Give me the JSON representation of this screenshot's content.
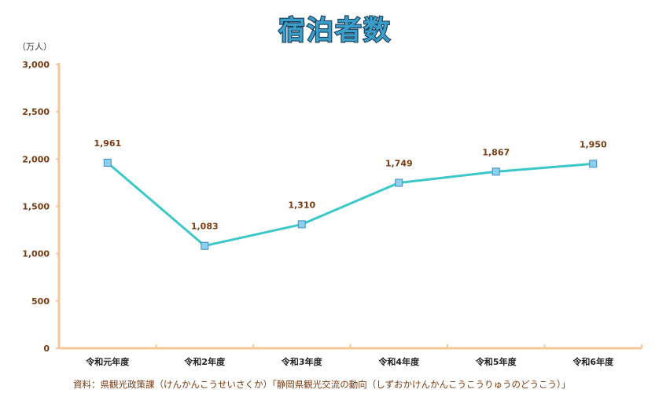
{
  "chart_data": {
    "type": "line",
    "title": "宿泊者数",
    "unit": "（万人）",
    "categories": [
      "令和元年度",
      "令和2年度",
      "令和3年度",
      "令和4年度",
      "令和5年度",
      "令和6年度"
    ],
    "series": [
      {
        "name": "宿泊者数",
        "values": [
          1961,
          1083,
          1310,
          1749,
          1867,
          1950
        ],
        "labels": [
          "1,961",
          "1,083",
          "1,310",
          "1,749",
          "1,867",
          "1,950"
        ]
      }
    ],
    "ylim": [
      0,
      3000
    ],
    "yticks": [
      0,
      500,
      1000,
      1500,
      2000,
      2500,
      3000
    ],
    "ytick_labels": [
      "0",
      "500",
      "1,000",
      "1,500",
      "2,000",
      "2,500",
      "3,000"
    ],
    "grid": false,
    "source": "資料：県観光政策課（けんかんこうせいさくか）「静岡県観光交流の動向（しずおかけんかんこうこうりゅうのどうこう）」"
  },
  "colors": {
    "line": "#3cc8c8",
    "marker_fill": "#8ecfee",
    "marker_stroke": "#3b8fc4",
    "axis": "#f5c89a",
    "title_fill": "#3a9ec8",
    "title_stroke": "#173a58",
    "label": "#7a3a10"
  }
}
